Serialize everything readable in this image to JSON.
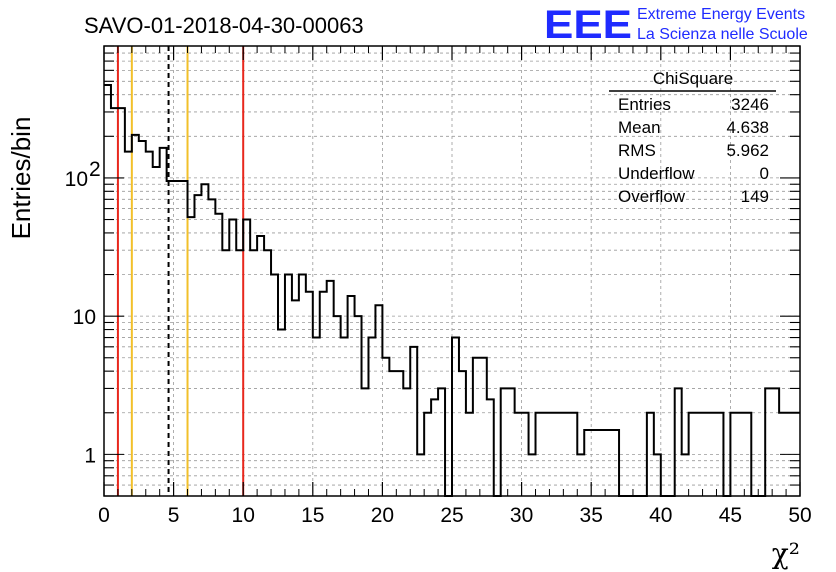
{
  "chart_data": {
    "type": "bar",
    "histogram": true,
    "title": "SAVO-01-2018-04-30-00063",
    "xlabel": "χ²",
    "ylabel": "Entries/bin",
    "xlim": [
      0,
      50
    ],
    "ylim": [
      0.5,
      900
    ],
    "yscale": "log",
    "grid": true,
    "x_ticks": [
      "0",
      "5",
      "10",
      "15",
      "20",
      "25",
      "30",
      "35",
      "40",
      "45",
      "50"
    ],
    "y_ticks": [
      {
        "value": 1,
        "label": "1"
      },
      {
        "value": 10,
        "label": "10"
      },
      {
        "value": 100,
        "label": "10",
        "exponent": "2"
      }
    ],
    "bin_width": 0.5,
    "bin_start": 0,
    "values": [
      470,
      320,
      320,
      155,
      205,
      185,
      155,
      120,
      165,
      95,
      95,
      95,
      52,
      75,
      90,
      70,
      55,
      30,
      50,
      30,
      50,
      30,
      38,
      30,
      20,
      8,
      20,
      13,
      20,
      15,
      7,
      15,
      18,
      10,
      7,
      14,
      10,
      3,
      7,
      12,
      5,
      4,
      4,
      3,
      6,
      1,
      2,
      2.5,
      3,
      0.0001,
      7,
      4,
      2,
      5,
      5,
      2.5,
      0,
      3,
      3,
      2,
      2,
      1,
      2,
      2,
      2,
      2,
      2,
      2,
      1,
      1.5,
      1.5,
      1.5,
      1.5,
      1.5,
      0.0001,
      0.0001,
      0.0001,
      0.0001,
      2,
      1,
      0.0001,
      0.0001,
      3,
      1,
      2,
      2,
      2,
      2,
      2,
      0.0001,
      2,
      2,
      2,
      0.0001,
      0.0001,
      3,
      3,
      2,
      2,
      2
    ],
    "vertical_lines": [
      {
        "x": 1,
        "color": "#e8271c",
        "style": "solid"
      },
      {
        "x": 2,
        "color": "#f2c02a",
        "style": "solid"
      },
      {
        "x": 4.638,
        "color": "#000000",
        "style": "dashed"
      },
      {
        "x": 6,
        "color": "#f2c02a",
        "style": "solid"
      },
      {
        "x": 10,
        "color": "#e8271c",
        "style": "solid"
      }
    ]
  },
  "stats": {
    "title": "ChiSquare",
    "rows": [
      {
        "label": "Entries",
        "value": "3246"
      },
      {
        "label": "Mean",
        "value": "4.638"
      },
      {
        "label": "RMS",
        "value": "5.962"
      },
      {
        "label": "Underflow",
        "value": "0"
      },
      {
        "label": "Overflow",
        "value": "149"
      }
    ]
  },
  "logo": {
    "big": "EEE",
    "line1": "Extreme Energy Events",
    "line2": "La Scienza nelle Scuole",
    "color": "#1f2bff"
  }
}
